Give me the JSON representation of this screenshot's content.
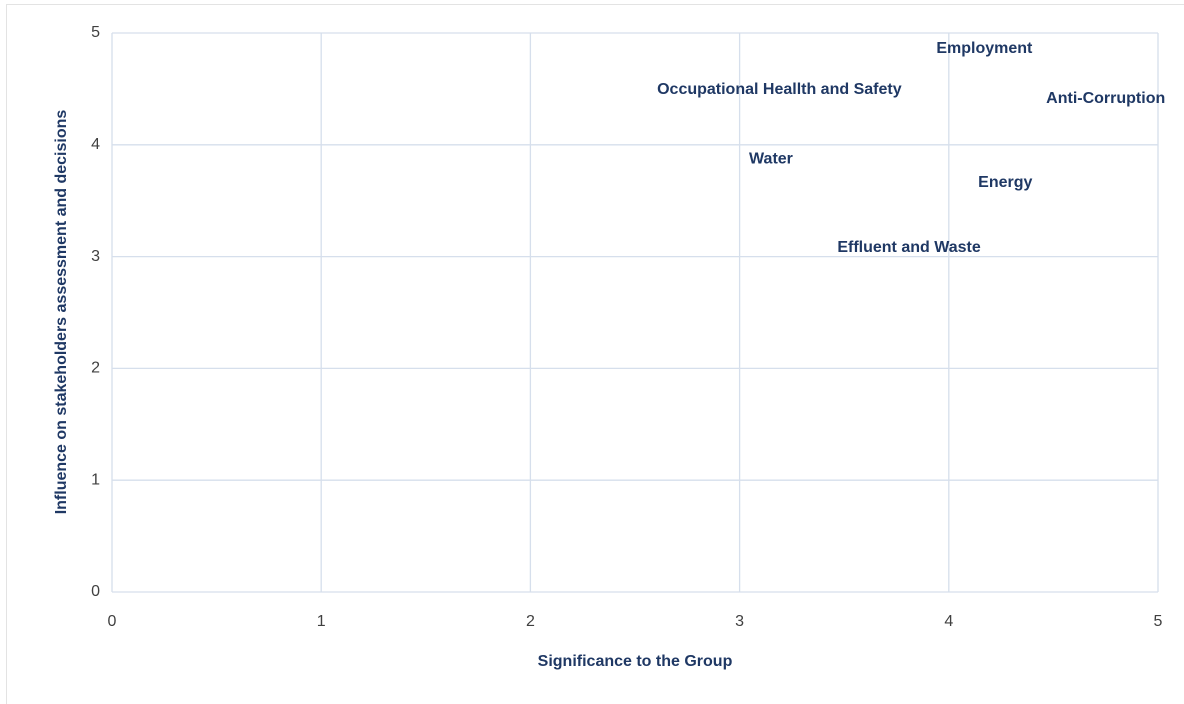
{
  "chart_data": {
    "type": "scatter",
    "x_label": "Significance to the Group",
    "y_label": "Influence on stakeholders assessment and decisions",
    "labels": [
      "Employment",
      "Occupational Heallth and Safety",
      "Anti-Corruption",
      "Water",
      "Energy",
      "Effluent and Waste"
    ],
    "x": [
      4.17,
      3.19,
      4.75,
      3.15,
      4.27,
      3.81
    ],
    "values": [
      4.86,
      4.49,
      4.41,
      3.87,
      3.66,
      3.08
    ],
    "color": "#1f3864",
    "xlim": [
      0,
      5
    ],
    "ylim": [
      0,
      5
    ],
    "xticks": [
      0,
      1,
      2,
      3,
      4,
      5
    ],
    "yticks": [
      0,
      1,
      2,
      3,
      4,
      5
    ],
    "grid": true
  }
}
